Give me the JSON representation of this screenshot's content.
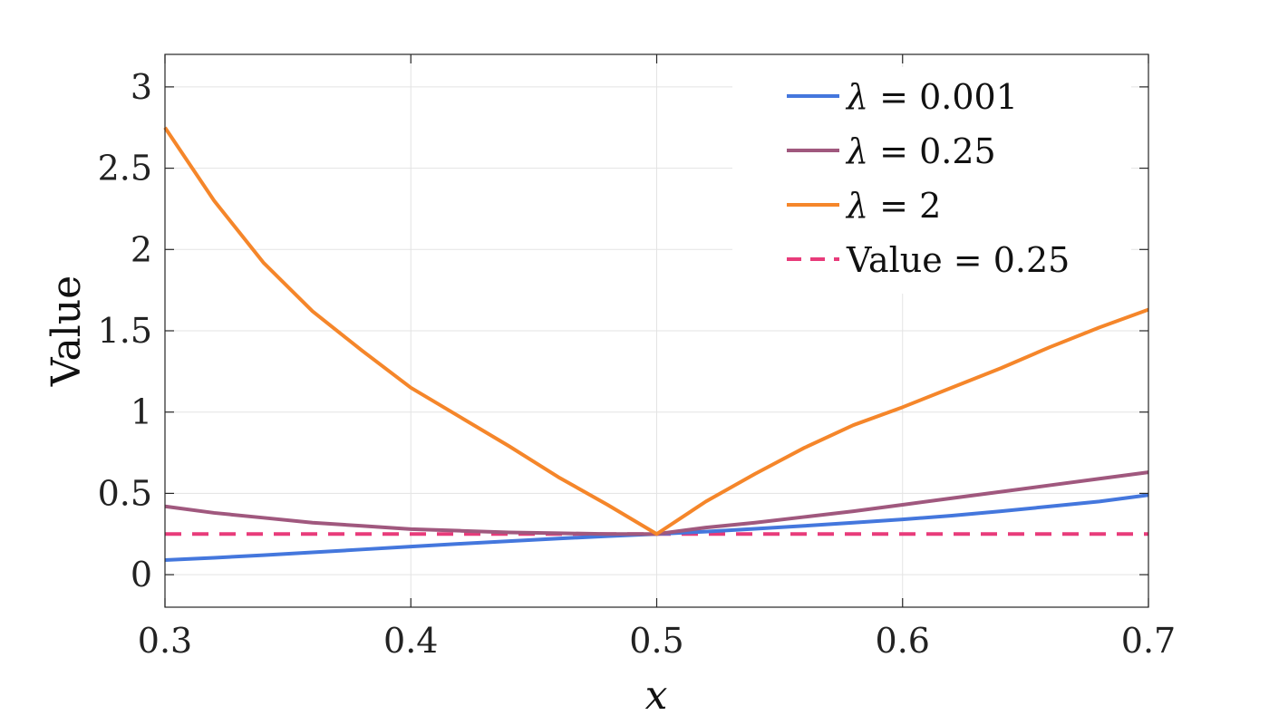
{
  "chart_data": {
    "type": "line",
    "xlabel": "x",
    "ylabel": "Value",
    "xlim": [
      0.3,
      0.7
    ],
    "ylim": [
      -0.2,
      3.2
    ],
    "xticks": [
      0.3,
      0.4,
      0.5,
      0.6,
      0.7
    ],
    "xtick_labels": [
      "0.3",
      "0.4",
      "0.5",
      "0.6",
      "0.7"
    ],
    "yticks": [
      0,
      0.5,
      1,
      1.5,
      2,
      2.5,
      3
    ],
    "ytick_labels": [
      "0",
      "0.5",
      "1",
      "1.5",
      "2",
      "2.5",
      "3"
    ],
    "grid": true,
    "legend_position": "top-right",
    "x": [
      0.3,
      0.32,
      0.34,
      0.36,
      0.38,
      0.4,
      0.42,
      0.44,
      0.46,
      0.48,
      0.5,
      0.52,
      0.54,
      0.56,
      0.58,
      0.6,
      0.62,
      0.64,
      0.66,
      0.68,
      0.7
    ],
    "series": [
      {
        "name": "λ = 0.001",
        "label_symbol": "λ",
        "label_rest": " = 0.001",
        "color": "#4477dd",
        "dash": "solid",
        "values": [
          0.09,
          0.104,
          0.12,
          0.137,
          0.155,
          0.173,
          0.19,
          0.206,
          0.222,
          0.237,
          0.25,
          0.265,
          0.282,
          0.3,
          0.32,
          0.34,
          0.363,
          0.39,
          0.42,
          0.45,
          0.49
        ]
      },
      {
        "name": "λ = 0.25",
        "label_symbol": "λ",
        "label_rest": " = 0.25",
        "color": "#a0587e",
        "dash": "solid",
        "values": [
          0.42,
          0.38,
          0.35,
          0.32,
          0.3,
          0.28,
          0.27,
          0.26,
          0.255,
          0.25,
          0.25,
          0.29,
          0.32,
          0.355,
          0.39,
          0.43,
          0.47,
          0.51,
          0.55,
          0.59,
          0.63
        ]
      },
      {
        "name": "λ = 2",
        "label_symbol": "λ",
        "label_rest": " = 2",
        "color": "#f5862a",
        "dash": "solid",
        "values": [
          2.75,
          2.3,
          1.92,
          1.62,
          1.38,
          1.15,
          0.97,
          0.79,
          0.6,
          0.43,
          0.25,
          0.45,
          0.62,
          0.78,
          0.92,
          1.03,
          1.15,
          1.27,
          1.4,
          1.52,
          1.63
        ]
      },
      {
        "name": "Value = 0.25",
        "label_symbol": "",
        "label_rest": "Value = 0.25",
        "color": "#e83b7a",
        "dash": "dashed",
        "values": [
          0.25,
          0.25,
          0.25,
          0.25,
          0.25,
          0.25,
          0.25,
          0.25,
          0.25,
          0.25,
          0.25,
          0.25,
          0.25,
          0.25,
          0.25,
          0.25,
          0.25,
          0.25,
          0.25,
          0.25,
          0.25
        ]
      }
    ]
  }
}
